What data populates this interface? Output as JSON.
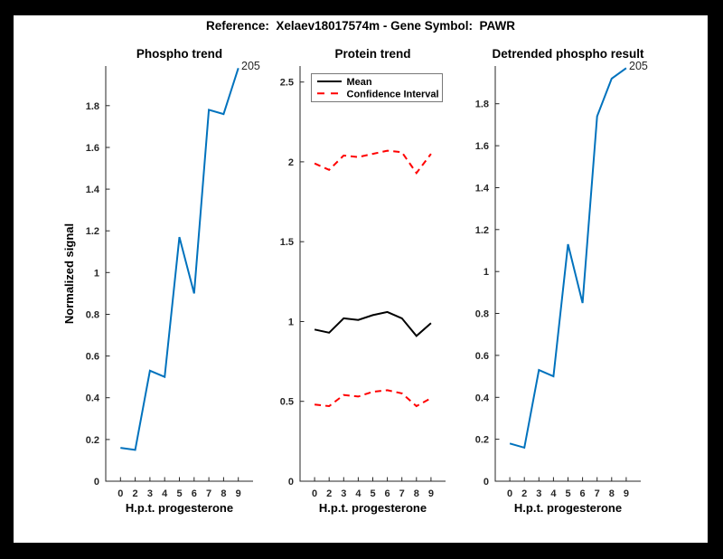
{
  "figure": {
    "title": "Reference:  Xelaev18017574m - Gene Symbol:  PAWR",
    "outer_background": "#000000",
    "inner_background": "#ffffff",
    "axis_color": "#262626",
    "accent_blue": "#0072BD",
    "accent_red": "#ff0000"
  },
  "chart_data": [
    {
      "type": "line",
      "title": "Phospho trend",
      "xlabel": "H.p.t. progesterone",
      "ylabel": "Normalized signal",
      "x_tick_labels": [
        "0",
        "2",
        "3",
        "4",
        "5",
        "6",
        "7",
        "8",
        "9"
      ],
      "ylim": [
        0,
        1.99
      ],
      "ytick_values": [
        0,
        0.2,
        0.4,
        0.6,
        0.8,
        1,
        1.2,
        1.4,
        1.6,
        1.8
      ],
      "ytick_labels": [
        "0",
        "0.2",
        "0.4",
        "0.6",
        "0.8",
        "1",
        "1.2",
        "1.4",
        "1.6",
        "1.8"
      ],
      "grid": false,
      "legend": null,
      "annotation": "205",
      "series": [
        {
          "name": "phospho-signal",
          "color": "#0072BD",
          "dash": null,
          "width": 2,
          "values": [
            0.16,
            0.15,
            0.53,
            0.5,
            1.17,
            0.9,
            1.78,
            1.76,
            1.98
          ]
        }
      ]
    },
    {
      "type": "line",
      "title": "Protein trend",
      "xlabel": "H.p.t. progesterone",
      "ylabel": "",
      "x_tick_labels": [
        "0",
        "2",
        "3",
        "4",
        "5",
        "6",
        "7",
        "8",
        "9"
      ],
      "ylim": [
        0,
        2.6
      ],
      "ytick_values": [
        0,
        0.5,
        1,
        1.5,
        2,
        2.5
      ],
      "ytick_labels": [
        "0",
        "0.5",
        "1",
        "1.5",
        "2",
        "2.5"
      ],
      "grid": false,
      "annotation": null,
      "legend": {
        "position": "top-left",
        "entries": [
          {
            "label": "Mean",
            "color": "#000000",
            "dash": null
          },
          {
            "label": "Confidence Interval",
            "color": "#ff0000",
            "dash": "8 7"
          }
        ]
      },
      "series": [
        {
          "name": "mean",
          "color": "#000000",
          "dash": null,
          "width": 2,
          "values": [
            0.95,
            0.93,
            1.02,
            1.01,
            1.04,
            1.06,
            1.02,
            0.91,
            0.99
          ]
        },
        {
          "name": "confidence-interval-upper",
          "color": "#ff0000",
          "dash": "7 5",
          "width": 2,
          "values": [
            1.99,
            1.95,
            2.04,
            2.03,
            2.05,
            2.07,
            2.06,
            1.93,
            2.05
          ]
        },
        {
          "name": "confidence-interval-lower",
          "color": "#ff0000",
          "dash": "7 5",
          "width": 2,
          "values": [
            0.48,
            0.47,
            0.54,
            0.53,
            0.56,
            0.57,
            0.55,
            0.47,
            0.52
          ]
        }
      ]
    },
    {
      "type": "line",
      "title": "Detrended phospho result",
      "xlabel": "H.p.t. progesterone",
      "ylabel": "",
      "x_tick_labels": [
        "0",
        "2",
        "3",
        "4",
        "5",
        "6",
        "7",
        "8",
        "9"
      ],
      "ylim": [
        0,
        1.98
      ],
      "ytick_values": [
        0,
        0.2,
        0.4,
        0.6,
        0.8,
        1,
        1.2,
        1.4,
        1.6,
        1.8
      ],
      "ytick_labels": [
        "0",
        "0.2",
        "0.4",
        "0.6",
        "0.8",
        "1",
        "1.2",
        "1.4",
        "1.6",
        "1.8"
      ],
      "grid": false,
      "legend": null,
      "annotation": "205",
      "series": [
        {
          "name": "detrended-phospho-signal",
          "color": "#0072BD",
          "dash": null,
          "width": 2,
          "values": [
            0.18,
            0.16,
            0.53,
            0.5,
            1.13,
            0.85,
            1.74,
            1.92,
            1.97
          ]
        }
      ]
    }
  ]
}
